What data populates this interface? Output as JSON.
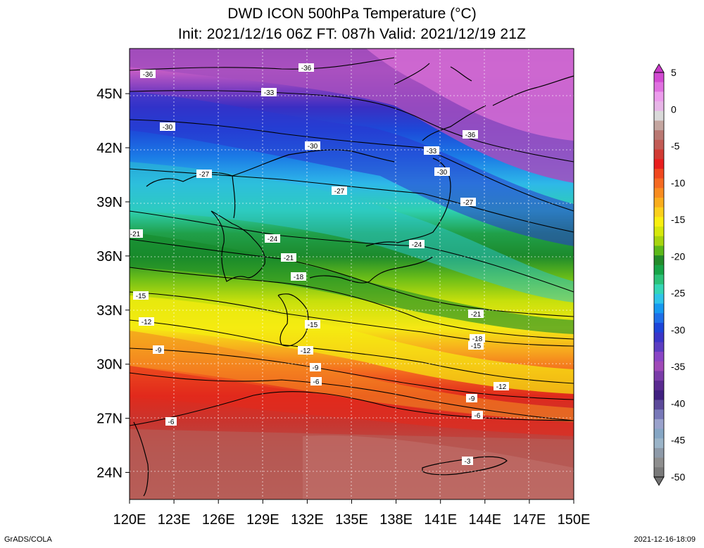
{
  "title": {
    "line1": "DWD ICON 500hPa Temperature (°C)",
    "line2": "Init: 2021/12/16 06Z  FT: 087h  Valid: 2021/12/19 21Z"
  },
  "axes": {
    "x_ticks": [
      "120E",
      "123E",
      "126E",
      "129E",
      "132E",
      "135E",
      "138E",
      "141E",
      "144E",
      "147E",
      "150E"
    ],
    "y_ticks": [
      "45N",
      "42N",
      "39N",
      "36N",
      "33N",
      "30N",
      "27N",
      "24N"
    ],
    "lon_range": [
      120,
      150
    ],
    "lat_range": [
      22.5,
      47.5
    ]
  },
  "colorbar": {
    "labels": [
      "5",
      "0",
      "-5",
      "-10",
      "-15",
      "-20",
      "-25",
      "-30",
      "-35",
      "-40",
      "-45",
      "-50"
    ],
    "colors": [
      "#d24ad2",
      "#e070e0",
      "#ec9cec",
      "#e7b5e7",
      "#d9d9d9",
      "#c4a6a0",
      "#b97872",
      "#c25b55",
      "#d13a33",
      "#e81e1e",
      "#f0481f",
      "#f56a22",
      "#f88c20",
      "#f9ad1d",
      "#fbd01c",
      "#f9ef10",
      "#d6e80c",
      "#a7d40f",
      "#5cb81a",
      "#238b2a",
      "#17a447",
      "#2bc178",
      "#35d6b5",
      "#2fc4e8",
      "#1799f0",
      "#1f6fe8",
      "#1d45d9",
      "#3a35c8",
      "#5c3dc1",
      "#8a45c5",
      "#a04ab8",
      "#7a3ca8",
      "#5a2a90",
      "#402080",
      "#5c4a9a",
      "#7878b8",
      "#9aa2cc",
      "#86a6c4",
      "#9bb4c8",
      "#8e9aa8",
      "#8e8e8e",
      "#7a7a7a"
    ]
  },
  "contour_labels": [
    "-36",
    "-33",
    "-30",
    "-27",
    "-24",
    "-21",
    "-18",
    "-15",
    "-12",
    "-9",
    "-6",
    "-3"
  ],
  "footer": {
    "left": "GrADS/COLA",
    "right": "2021-12-16-18:09"
  }
}
